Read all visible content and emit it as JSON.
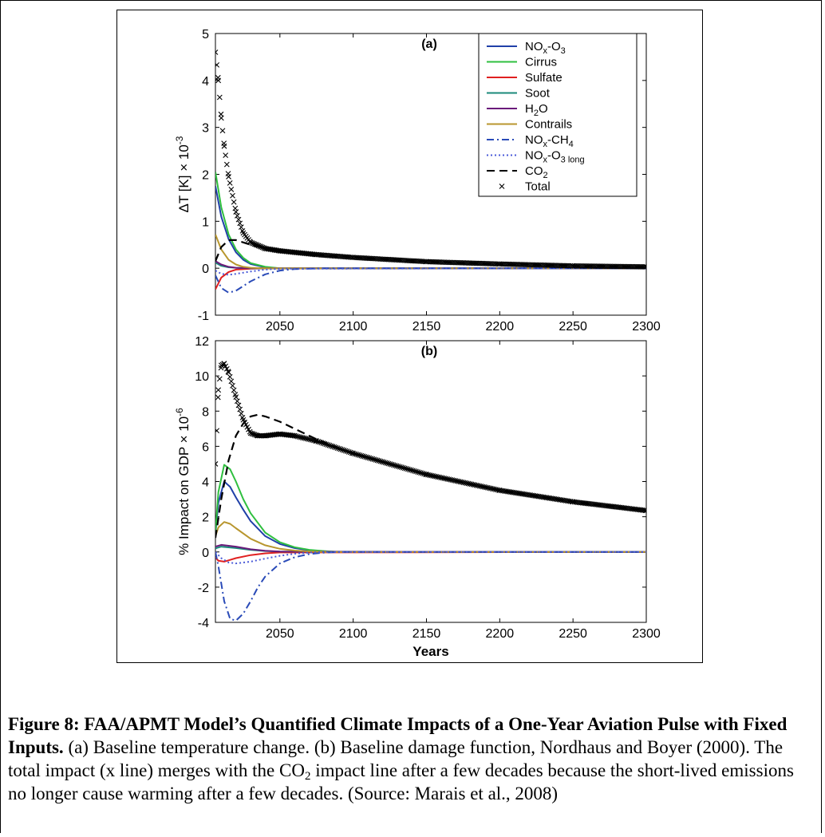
{
  "chart_data": [
    {
      "type": "line",
      "panel_label": "(a)",
      "ylabel": "ΔT [K] × 10",
      "ylabel_exp": "-3",
      "xlim": [
        2006,
        2300
      ],
      "ylim": [
        -1,
        5
      ],
      "xticks": [
        2050,
        2100,
        2150,
        2200,
        2250,
        2300
      ],
      "yticks": [
        -1,
        0,
        1,
        2,
        3,
        4,
        5
      ],
      "legend_position": "top-right",
      "series": [
        {
          "name": "NOx-O3",
          "color": "#2040a8",
          "style": "solid",
          "x": [
            2006,
            2010,
            2015,
            2020,
            2025,
            2030,
            2040,
            2050,
            2300
          ],
          "y": [
            1.75,
            1.1,
            0.62,
            0.34,
            0.18,
            0.09,
            0.02,
            0.0,
            0.0
          ]
        },
        {
          "name": "Cirrus",
          "color": "#2fbf3f",
          "style": "solid",
          "x": [
            2006,
            2010,
            2015,
            2020,
            2025,
            2030,
            2040,
            2050,
            2300
          ],
          "y": [
            2.05,
            1.3,
            0.72,
            0.4,
            0.22,
            0.11,
            0.03,
            0.0,
            0.0
          ]
        },
        {
          "name": "Sulfate",
          "color": "#e02020",
          "style": "solid",
          "x": [
            2006,
            2010,
            2015,
            2020,
            2030,
            2040,
            2300
          ],
          "y": [
            -0.45,
            -0.2,
            -0.08,
            -0.03,
            -0.01,
            0.0,
            0.0
          ]
        },
        {
          "name": "Soot",
          "color": "#1a8a7a",
          "style": "solid",
          "x": [
            2006,
            2010,
            2015,
            2020,
            2030,
            2300
          ],
          "y": [
            0.12,
            0.05,
            0.02,
            0.01,
            0.0,
            0.0
          ]
        },
        {
          "name": "H2O",
          "color": "#6a1a7a",
          "style": "solid",
          "x": [
            2006,
            2010,
            2015,
            2020,
            2030,
            2300
          ],
          "y": [
            0.15,
            0.08,
            0.03,
            0.01,
            0.0,
            0.0
          ]
        },
        {
          "name": "Contrails",
          "color": "#b8962e",
          "style": "solid",
          "x": [
            2006,
            2010,
            2015,
            2020,
            2025,
            2030,
            2040,
            2300
          ],
          "y": [
            0.72,
            0.4,
            0.18,
            0.08,
            0.03,
            0.01,
            0.0,
            0.0
          ]
        },
        {
          "name": "NOx-CH4",
          "color": "#2a4bb8",
          "style": "dashdot",
          "x": [
            2006,
            2010,
            2015,
            2020,
            2025,
            2030,
            2040,
            2050,
            2060,
            2070,
            2080,
            2300
          ],
          "y": [
            -0.15,
            -0.42,
            -0.52,
            -0.48,
            -0.38,
            -0.28,
            -0.13,
            -0.05,
            -0.02,
            -0.01,
            0.0,
            0.0
          ]
        },
        {
          "name": "NOx-O3 long",
          "color": "#4a5ad8",
          "style": "dotted",
          "x": [
            2006,
            2010,
            2015,
            2020,
            2030,
            2040,
            2050,
            2300
          ],
          "y": [
            -0.05,
            -0.12,
            -0.14,
            -0.12,
            -0.07,
            -0.03,
            -0.01,
            0.0
          ]
        },
        {
          "name": "CO2",
          "color": "#000000",
          "style": "dashed",
          "x": [
            2006,
            2010,
            2015,
            2020,
            2025,
            2030,
            2040,
            2050,
            2075,
            2100,
            2150,
            2200,
            2250,
            2300
          ],
          "y": [
            0.15,
            0.45,
            0.6,
            0.6,
            0.55,
            0.5,
            0.42,
            0.37,
            0.29,
            0.23,
            0.14,
            0.09,
            0.05,
            0.03
          ]
        },
        {
          "name": "Total",
          "color": "#000000",
          "style": "markers",
          "x": [
            2006,
            2008,
            2010,
            2012,
            2015,
            2020,
            2025,
            2030,
            2040,
            2050,
            2075,
            2100,
            2150,
            2200,
            2250,
            2300
          ],
          "y": [
            4.6,
            4.0,
            3.2,
            2.6,
            1.95,
            1.2,
            0.75,
            0.55,
            0.42,
            0.37,
            0.29,
            0.23,
            0.14,
            0.09,
            0.05,
            0.03
          ]
        }
      ]
    },
    {
      "type": "line",
      "panel_label": "(b)",
      "xlabel": "Years",
      "ylabel": "% Impact on GDP × 10",
      "ylabel_exp": "-6",
      "xlim": [
        2006,
        2300
      ],
      "ylim": [
        -4,
        12
      ],
      "xticks": [
        2050,
        2100,
        2150,
        2200,
        2250,
        2300
      ],
      "yticks": [
        -4,
        -2,
        0,
        2,
        4,
        6,
        8,
        10,
        12
      ],
      "series": [
        {
          "name": "NOx-O3",
          "color": "#2040a8",
          "style": "solid",
          "x": [
            2006,
            2008,
            2012,
            2016,
            2020,
            2025,
            2030,
            2040,
            2050,
            2060,
            2070,
            2080,
            2090,
            2300
          ],
          "y": [
            1.0,
            2.8,
            4.0,
            3.7,
            3.1,
            2.4,
            1.75,
            0.9,
            0.45,
            0.22,
            0.1,
            0.04,
            0.0,
            0.0
          ]
        },
        {
          "name": "Cirrus",
          "color": "#2fbf3f",
          "style": "solid",
          "x": [
            2006,
            2008,
            2012,
            2016,
            2020,
            2025,
            2030,
            2040,
            2050,
            2060,
            2070,
            2080,
            2090,
            2300
          ],
          "y": [
            1.1,
            3.4,
            4.95,
            4.7,
            4.0,
            3.0,
            2.2,
            1.1,
            0.55,
            0.27,
            0.12,
            0.05,
            0.0,
            0.0
          ]
        },
        {
          "name": "Sulfate",
          "color": "#e02020",
          "style": "solid",
          "x": [
            2006,
            2008,
            2012,
            2016,
            2020,
            2030,
            2040,
            2050,
            2300
          ],
          "y": [
            -0.3,
            -0.5,
            -0.55,
            -0.45,
            -0.35,
            -0.18,
            -0.08,
            -0.03,
            0.0
          ]
        },
        {
          "name": "Soot",
          "color": "#1a8a7a",
          "style": "solid",
          "x": [
            2006,
            2010,
            2020,
            2030,
            2040,
            2050,
            2300
          ],
          "y": [
            0.2,
            0.3,
            0.22,
            0.12,
            0.05,
            0.02,
            0.0
          ]
        },
        {
          "name": "H2O",
          "color": "#6a1a7a",
          "style": "solid",
          "x": [
            2006,
            2010,
            2020,
            2030,
            2040,
            2050,
            2300
          ],
          "y": [
            0.3,
            0.4,
            0.3,
            0.15,
            0.07,
            0.02,
            0.0
          ]
        },
        {
          "name": "Contrails",
          "color": "#b8962e",
          "style": "solid",
          "x": [
            2006,
            2008,
            2012,
            2016,
            2020,
            2030,
            2040,
            2050,
            2060,
            2070,
            2080,
            2300
          ],
          "y": [
            0.9,
            1.4,
            1.7,
            1.6,
            1.35,
            0.75,
            0.38,
            0.18,
            0.08,
            0.03,
            0.0,
            0.0
          ]
        },
        {
          "name": "NOx-CH4",
          "color": "#2a4bb8",
          "style": "dashdot",
          "x": [
            2006,
            2008,
            2012,
            2016,
            2020,
            2025,
            2030,
            2035,
            2040,
            2050,
            2060,
            2070,
            2080,
            2090,
            2300
          ],
          "y": [
            0.0,
            -0.8,
            -2.8,
            -3.8,
            -3.9,
            -3.5,
            -2.8,
            -2.0,
            -1.4,
            -0.65,
            -0.3,
            -0.12,
            -0.04,
            0.0,
            0.0
          ]
        },
        {
          "name": "NOx-O3 long",
          "color": "#4a5ad8",
          "style": "dotted",
          "x": [
            2006,
            2010,
            2015,
            2020,
            2030,
            2040,
            2050,
            2060,
            2070,
            2080,
            2300
          ],
          "y": [
            0.0,
            -0.35,
            -0.6,
            -0.65,
            -0.55,
            -0.38,
            -0.22,
            -0.1,
            -0.04,
            0.0,
            0.0
          ]
        },
        {
          "name": "CO2",
          "color": "#000000",
          "style": "dashed",
          "x": [
            2006,
            2010,
            2015,
            2020,
            2025,
            2030,
            2035,
            2040,
            2050,
            2060,
            2075,
            2100,
            2150,
            2200,
            2250,
            2300
          ],
          "y": [
            0.8,
            3.0,
            5.2,
            6.6,
            7.3,
            7.7,
            7.8,
            7.7,
            7.4,
            7.0,
            6.4,
            5.6,
            4.4,
            3.5,
            2.85,
            2.35
          ]
        },
        {
          "name": "Total",
          "color": "#000000",
          "style": "markers",
          "x": [
            2006,
            2008,
            2010,
            2012,
            2015,
            2020,
            2025,
            2030,
            2035,
            2040,
            2050,
            2060,
            2075,
            2100,
            2150,
            2200,
            2250,
            2300
          ],
          "y": [
            5.0,
            9.2,
            10.6,
            10.7,
            10.2,
            8.8,
            7.5,
            6.75,
            6.6,
            6.6,
            6.7,
            6.6,
            6.3,
            5.6,
            4.4,
            3.5,
            2.85,
            2.35
          ]
        }
      ]
    }
  ],
  "legend": [
    {
      "base": "NO",
      "sub": "x",
      "mid": "-O",
      "sub2": "3",
      "style": "solid",
      "color": "#2040a8"
    },
    {
      "base": "Cirrus",
      "style": "solid",
      "color": "#2fbf3f"
    },
    {
      "base": "Sulfate",
      "style": "solid",
      "color": "#e02020"
    },
    {
      "base": "Soot",
      "style": "solid",
      "color": "#1a8a7a"
    },
    {
      "base": "H",
      "sub": "2",
      "mid": "O",
      "style": "solid",
      "color": "#6a1a7a"
    },
    {
      "base": "Contrails",
      "style": "solid",
      "color": "#b8962e"
    },
    {
      "base": "NO",
      "sub": "x",
      "mid": "-CH",
      "sub2": "4",
      "style": "dashdot",
      "color": "#2a4bb8"
    },
    {
      "base": "NO",
      "sub": "x",
      "mid": "-O",
      "sub2": "3 long",
      "style": "dotted",
      "color": "#4a5ad8"
    },
    {
      "base": "CO",
      "sub": "2",
      "style": "dashed",
      "color": "#000000"
    },
    {
      "base": "Total",
      "style": "markers",
      "color": "#000000"
    }
  ],
  "caption": {
    "bold": "Figure 8: FAA/APMT Model’s Quantified Climate Impacts of a One-Year Aviation Pulse with Fixed Inputs.",
    "part1": " (a) Baseline temperature change. (b) Baseline damage function, Nordhaus and Boyer (2000). The total impact (x line) merges with the CO",
    "sub": "2",
    "part2": " impact line after a few decades because the short-lived emissions no longer cause warming after a few decades. (Source: Marais et al., 2008)"
  }
}
